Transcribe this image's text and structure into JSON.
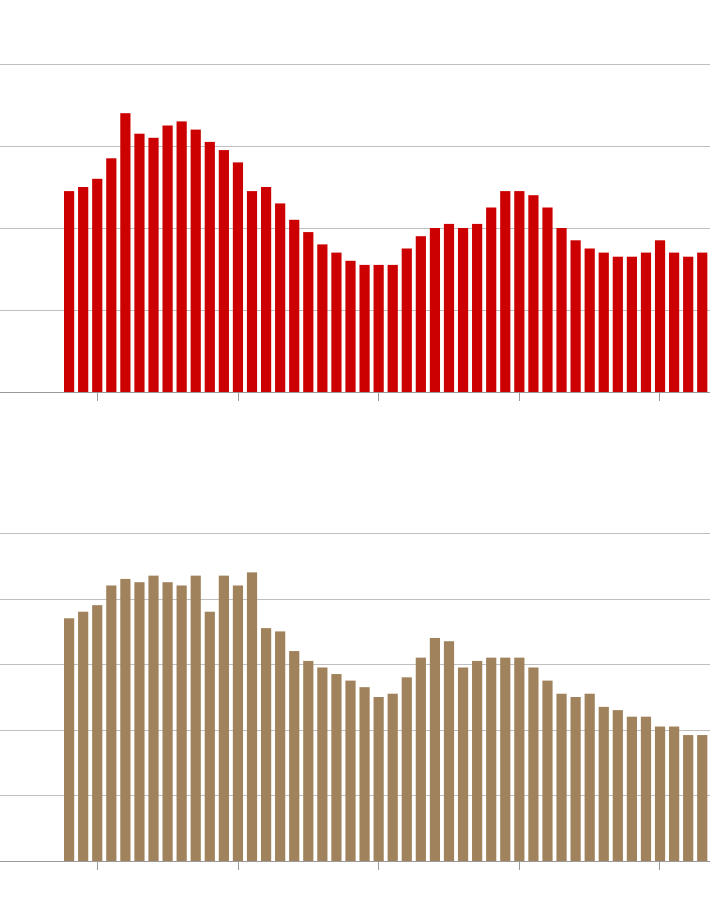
{
  "colors": {
    "top_bars": "#cc0000",
    "bottom_bars": "#a0835c",
    "gridline": "#bfbfbf",
    "baseline": "#999999"
  },
  "chart_data": [
    {
      "type": "bar",
      "grid": true,
      "legend": "none",
      "bar_color": "#cc0000",
      "ylim": [
        0,
        8
      ],
      "gridlines_y": [
        2,
        4,
        6,
        8
      ],
      "values": [
        4.9,
        5.0,
        5.2,
        5.7,
        6.8,
        6.3,
        6.2,
        6.5,
        6.6,
        6.4,
        6.1,
        5.9,
        5.6,
        4.9,
        5.0,
        4.6,
        4.2,
        3.9,
        3.6,
        3.4,
        3.2,
        3.1,
        3.1,
        3.1,
        3.5,
        3.8,
        4.0,
        4.1,
        4.0,
        4.1,
        4.5,
        4.9,
        4.9,
        4.8,
        4.5,
        4.0,
        3.7,
        3.5,
        3.4,
        3.3,
        3.3,
        3.4,
        3.7,
        3.4,
        3.3,
        3.4
      ]
    },
    {
      "type": "bar",
      "grid": true,
      "legend": "none",
      "bar_color": "#a0835c",
      "ylim": [
        0,
        5
      ],
      "gridlines_y": [
        1,
        2,
        3,
        4,
        5
      ],
      "values": [
        3.7,
        3.8,
        3.9,
        4.2,
        4.3,
        4.25,
        4.35,
        4.25,
        4.2,
        4.35,
        3.8,
        4.35,
        4.2,
        4.4,
        3.55,
        3.5,
        3.2,
        3.05,
        2.95,
        2.85,
        2.75,
        2.65,
        2.5,
        2.55,
        2.8,
        3.1,
        3.4,
        3.35,
        2.95,
        3.05,
        3.1,
        3.1,
        3.1,
        2.95,
        2.75,
        2.55,
        2.5,
        2.55,
        2.35,
        2.3,
        2.2,
        2.2,
        2.05,
        2.05,
        1.92,
        1.92
      ]
    }
  ]
}
